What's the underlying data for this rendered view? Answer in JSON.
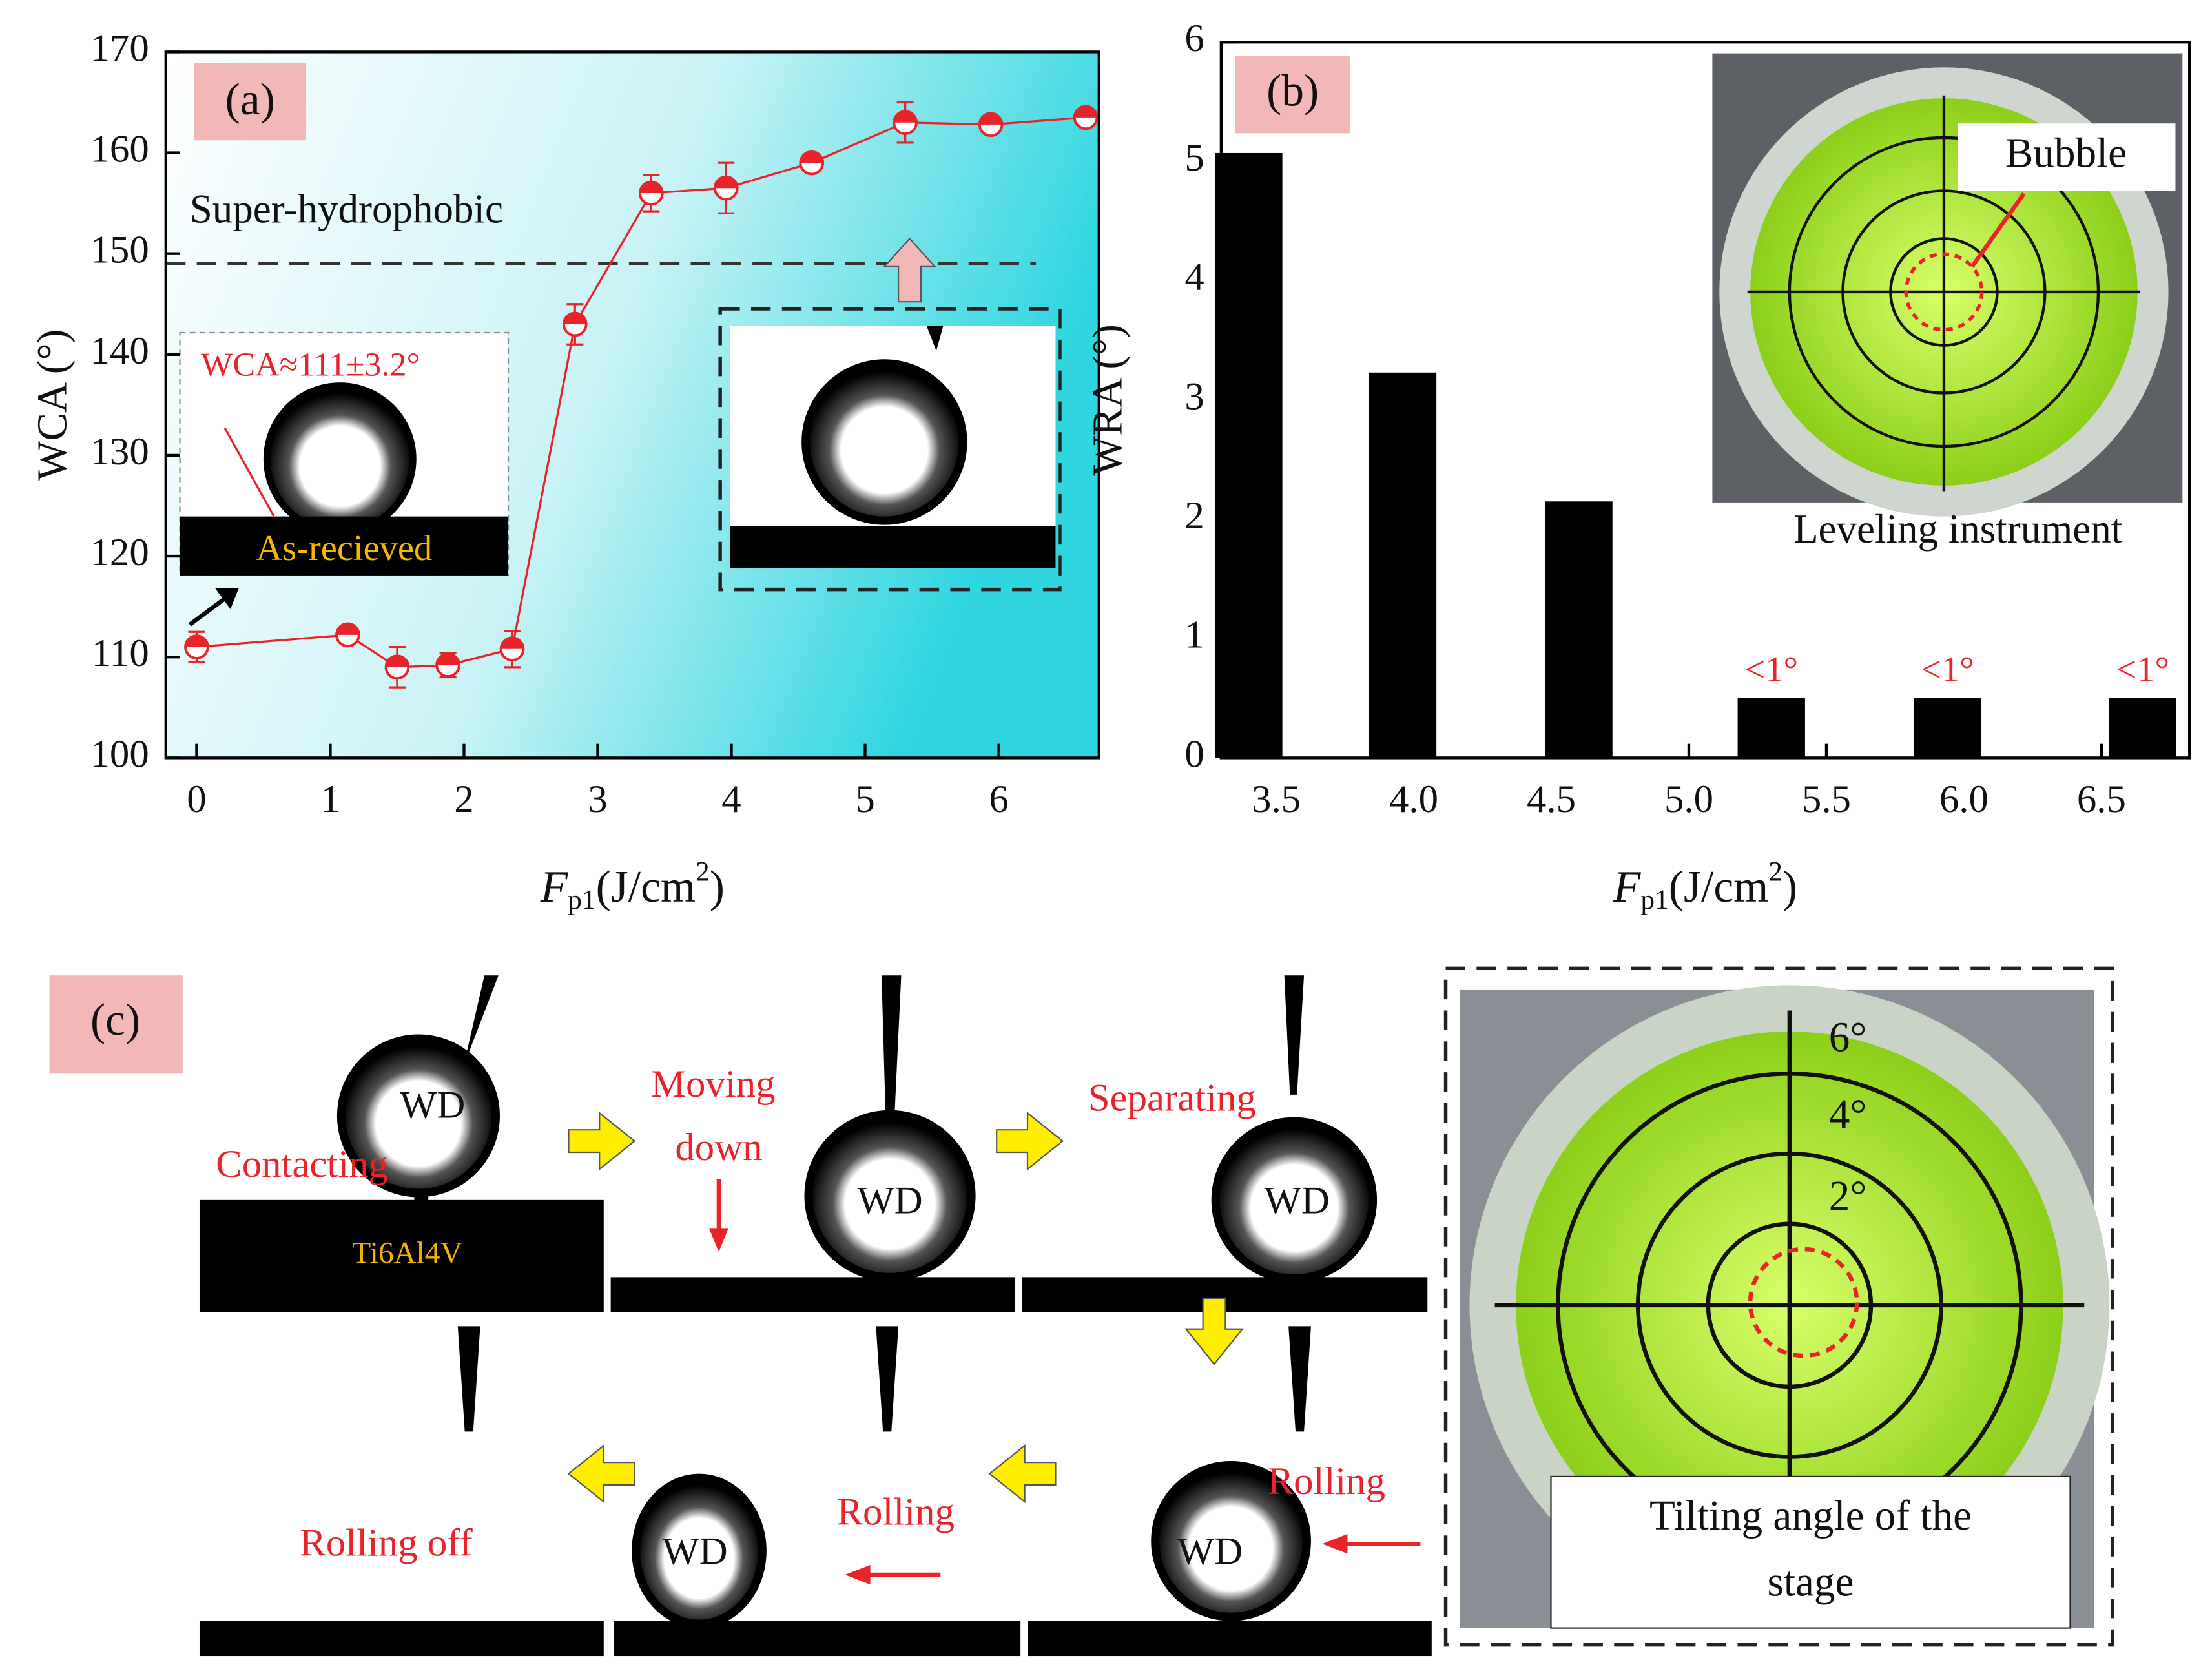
{
  "chart_data": [
    {
      "type": "line",
      "ylabel": "WCA (°)",
      "xlabel": {
        "symbol": "F",
        "subscript": "p1",
        "unit": "(J/cm",
        "exponent": "2",
        "close": ")"
      },
      "x": [
        0,
        1.13,
        1.5,
        1.88,
        2.36,
        2.83,
        3.4,
        3.96,
        4.6,
        5.3,
        5.94,
        6.65
      ],
      "values": [
        111,
        112.2,
        109,
        109.2,
        110.8,
        143,
        156,
        156.5,
        159,
        163,
        162.8,
        163.5
      ],
      "errors": [
        1.5,
        0.5,
        2,
        1.2,
        1.8,
        2,
        1.8,
        2.5,
        0.8,
        2,
        0.5,
        0.8
      ],
      "color": "#e8242a",
      "xlim": [
        -0.23,
        6.75
      ],
      "xticks": [
        0,
        1,
        2,
        3,
        4,
        5,
        6
      ],
      "ylim": [
        100,
        170
      ],
      "yticks": [
        100,
        110,
        120,
        130,
        140,
        150,
        160,
        170
      ],
      "reference_line": 149,
      "annotations": [
        "(a)",
        "Super-hydrophobic",
        "WCA≈111±3.2°",
        "As-recieved"
      ]
    },
    {
      "type": "bar",
      "ylabel": "WRA (°)",
      "xlabel": {
        "symbol": "F",
        "subscript": "p1",
        "unit": "(J/cm",
        "exponent": "2",
        "close": ")"
      },
      "x": [
        3.4,
        3.96,
        4.6,
        5.3,
        5.94,
        6.65
      ],
      "values": [
        5.07,
        3.23,
        2.15,
        0.5,
        0.5,
        0.5
      ],
      "value_labels": [
        null,
        null,
        null,
        "<1°",
        "<1°",
        "<1°"
      ],
      "color": "#000000",
      "xlim": [
        3.3,
        6.82
      ],
      "xticks": [
        3.5,
        {
          "value": 4,
          "label": "4.0"
        },
        4.5,
        {
          "value": 5,
          "label": "5.0"
        },
        5.5,
        {
          "value": 6,
          "label": "6.0"
        },
        6.5
      ],
      "ylim": [
        0,
        6
      ],
      "yticks": [
        0,
        1,
        2,
        3,
        4,
        5,
        6
      ],
      "annotations": [
        "(b)",
        "Bubble",
        "Leveling instrument"
      ]
    }
  ],
  "panel_c": {
    "labels": [
      "(c)",
      "Contacting",
      "Ti6Al4V",
      "Moving",
      "down",
      "Separating",
      "Rolling",
      "Rolling",
      "Rolling off",
      "WD",
      "Tilting angle of the",
      "stage"
    ],
    "level_marks": [
      "6°",
      "4°",
      "2°"
    ]
  }
}
